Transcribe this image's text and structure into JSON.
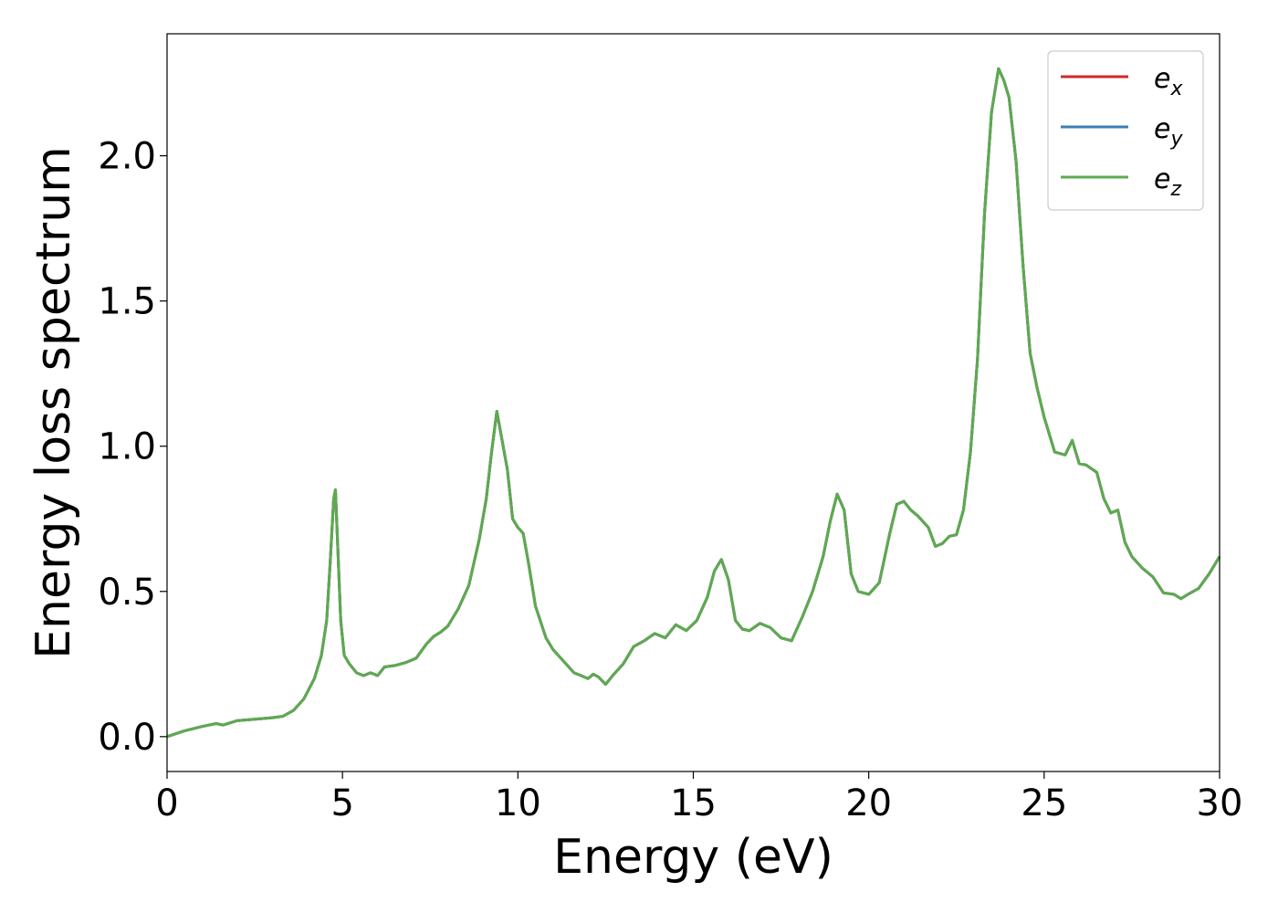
{
  "chart_data": {
    "type": "line",
    "xlabel": "Energy (eV)",
    "ylabel": "Energy loss spectrum",
    "xlim": [
      0,
      30
    ],
    "ylim": [
      -0.12,
      2.42
    ],
    "xticks": [
      0,
      5,
      10,
      15,
      20,
      25,
      30
    ],
    "xtick_labels": [
      "0",
      "5",
      "10",
      "15",
      "20",
      "25",
      "30"
    ],
    "yticks": [
      0.0,
      0.5,
      1.0,
      1.5,
      2.0
    ],
    "ytick_labels": [
      "0.0",
      "0.5",
      "1.0",
      "1.5",
      "2.0"
    ],
    "grid": false,
    "legend": {
      "placement": "top-right",
      "entries": [
        {
          "symbol": "e",
          "subscript": "x",
          "color": "#d62728"
        },
        {
          "symbol": "e",
          "subscript": "y",
          "color": "#3b7cb8"
        },
        {
          "symbol": "e",
          "subscript": "z",
          "color": "#5daa4f"
        }
      ]
    },
    "x": [
      0.0,
      0.5,
      1.0,
      1.4,
      1.6,
      2.0,
      2.5,
      3.0,
      3.3,
      3.6,
      3.9,
      4.2,
      4.4,
      4.55,
      4.65,
      4.75,
      4.8,
      4.85,
      4.95,
      5.05,
      5.2,
      5.4,
      5.6,
      5.8,
      6.0,
      6.2,
      6.5,
      6.8,
      7.1,
      7.4,
      7.6,
      7.8,
      8.0,
      8.3,
      8.6,
      8.9,
      9.1,
      9.25,
      9.4,
      9.55,
      9.7,
      9.85,
      10.0,
      10.15,
      10.3,
      10.5,
      10.8,
      11.0,
      11.3,
      11.6,
      11.8,
      12.0,
      12.15,
      12.3,
      12.5,
      12.7,
      13.0,
      13.3,
      13.6,
      13.9,
      14.2,
      14.5,
      14.8,
      15.1,
      15.4,
      15.6,
      15.8,
      16.0,
      16.2,
      16.4,
      16.6,
      16.9,
      17.2,
      17.5,
      17.8,
      18.1,
      18.4,
      18.7,
      18.9,
      19.1,
      19.3,
      19.5,
      19.7,
      20.0,
      20.3,
      20.6,
      20.8,
      21.0,
      21.2,
      21.4,
      21.7,
      21.9,
      22.1,
      22.3,
      22.5,
      22.7,
      22.9,
      23.1,
      23.3,
      23.5,
      23.7,
      23.85,
      24.0,
      24.2,
      24.4,
      24.6,
      24.8,
      25.0,
      25.3,
      25.6,
      25.8,
      26.0,
      26.2,
      26.5,
      26.7,
      26.9,
      27.1,
      27.3,
      27.5,
      27.8,
      28.1,
      28.4,
      28.7,
      28.9,
      29.1,
      29.4,
      29.7,
      30.0
    ],
    "series": [
      {
        "name": "e_x",
        "color": "#d62728",
        "values": [
          0.0,
          0.02,
          0.035,
          0.045,
          0.04,
          0.055,
          0.06,
          0.065,
          0.07,
          0.09,
          0.13,
          0.2,
          0.28,
          0.4,
          0.6,
          0.82,
          0.85,
          0.7,
          0.4,
          0.28,
          0.25,
          0.22,
          0.21,
          0.22,
          0.21,
          0.24,
          0.245,
          0.255,
          0.27,
          0.32,
          0.345,
          0.36,
          0.38,
          0.44,
          0.52,
          0.68,
          0.82,
          0.98,
          1.12,
          1.02,
          0.92,
          0.75,
          0.72,
          0.7,
          0.6,
          0.45,
          0.34,
          0.3,
          0.26,
          0.22,
          0.21,
          0.2,
          0.215,
          0.205,
          0.18,
          0.21,
          0.25,
          0.31,
          0.33,
          0.355,
          0.34,
          0.385,
          0.365,
          0.4,
          0.48,
          0.57,
          0.61,
          0.54,
          0.4,
          0.37,
          0.365,
          0.39,
          0.375,
          0.34,
          0.33,
          0.41,
          0.5,
          0.62,
          0.74,
          0.835,
          0.78,
          0.56,
          0.5,
          0.49,
          0.53,
          0.7,
          0.8,
          0.81,
          0.78,
          0.76,
          0.72,
          0.655,
          0.665,
          0.69,
          0.695,
          0.78,
          0.98,
          1.3,
          1.8,
          2.15,
          2.3,
          2.26,
          2.2,
          1.98,
          1.62,
          1.32,
          1.2,
          1.1,
          0.98,
          0.97,
          1.02,
          0.94,
          0.935,
          0.91,
          0.82,
          0.77,
          0.78,
          0.67,
          0.62,
          0.58,
          0.55,
          0.495,
          0.49,
          0.475,
          0.49,
          0.51,
          0.56,
          0.62
        ]
      },
      {
        "name": "e_y",
        "color": "#3b7cb8",
        "values": [
          0.0,
          0.02,
          0.035,
          0.045,
          0.04,
          0.055,
          0.06,
          0.065,
          0.07,
          0.09,
          0.13,
          0.2,
          0.28,
          0.4,
          0.6,
          0.82,
          0.85,
          0.7,
          0.4,
          0.28,
          0.25,
          0.22,
          0.21,
          0.22,
          0.21,
          0.24,
          0.245,
          0.255,
          0.27,
          0.32,
          0.345,
          0.36,
          0.38,
          0.44,
          0.52,
          0.68,
          0.82,
          0.98,
          1.12,
          1.02,
          0.92,
          0.75,
          0.72,
          0.7,
          0.6,
          0.45,
          0.34,
          0.3,
          0.26,
          0.22,
          0.21,
          0.2,
          0.215,
          0.205,
          0.18,
          0.21,
          0.25,
          0.31,
          0.33,
          0.355,
          0.34,
          0.385,
          0.365,
          0.4,
          0.48,
          0.57,
          0.61,
          0.54,
          0.4,
          0.37,
          0.365,
          0.39,
          0.375,
          0.34,
          0.33,
          0.41,
          0.5,
          0.62,
          0.74,
          0.835,
          0.78,
          0.56,
          0.5,
          0.49,
          0.53,
          0.7,
          0.8,
          0.81,
          0.78,
          0.76,
          0.72,
          0.655,
          0.665,
          0.69,
          0.695,
          0.78,
          0.98,
          1.3,
          1.8,
          2.15,
          2.3,
          2.26,
          2.2,
          1.98,
          1.62,
          1.32,
          1.2,
          1.1,
          0.98,
          0.97,
          1.02,
          0.94,
          0.935,
          0.91,
          0.82,
          0.77,
          0.78,
          0.67,
          0.62,
          0.58,
          0.55,
          0.495,
          0.49,
          0.475,
          0.49,
          0.51,
          0.56,
          0.62
        ]
      },
      {
        "name": "e_z",
        "color": "#5daa4f",
        "values": [
          0.0,
          0.02,
          0.035,
          0.045,
          0.04,
          0.055,
          0.06,
          0.065,
          0.07,
          0.09,
          0.13,
          0.2,
          0.28,
          0.4,
          0.6,
          0.82,
          0.85,
          0.7,
          0.4,
          0.28,
          0.25,
          0.22,
          0.21,
          0.22,
          0.21,
          0.24,
          0.245,
          0.255,
          0.27,
          0.32,
          0.345,
          0.36,
          0.38,
          0.44,
          0.52,
          0.68,
          0.82,
          0.98,
          1.12,
          1.02,
          0.92,
          0.75,
          0.72,
          0.7,
          0.6,
          0.45,
          0.34,
          0.3,
          0.26,
          0.22,
          0.21,
          0.2,
          0.215,
          0.205,
          0.18,
          0.21,
          0.25,
          0.31,
          0.33,
          0.355,
          0.34,
          0.385,
          0.365,
          0.4,
          0.48,
          0.57,
          0.61,
          0.54,
          0.4,
          0.37,
          0.365,
          0.39,
          0.375,
          0.34,
          0.33,
          0.41,
          0.5,
          0.62,
          0.74,
          0.835,
          0.78,
          0.56,
          0.5,
          0.49,
          0.53,
          0.7,
          0.8,
          0.81,
          0.78,
          0.76,
          0.72,
          0.655,
          0.665,
          0.69,
          0.695,
          0.78,
          0.98,
          1.3,
          1.8,
          2.15,
          2.3,
          2.26,
          2.2,
          1.98,
          1.62,
          1.32,
          1.2,
          1.1,
          0.98,
          0.97,
          1.02,
          0.94,
          0.935,
          0.91,
          0.82,
          0.77,
          0.78,
          0.67,
          0.62,
          0.58,
          0.55,
          0.495,
          0.49,
          0.475,
          0.49,
          0.51,
          0.56,
          0.62
        ]
      }
    ]
  }
}
